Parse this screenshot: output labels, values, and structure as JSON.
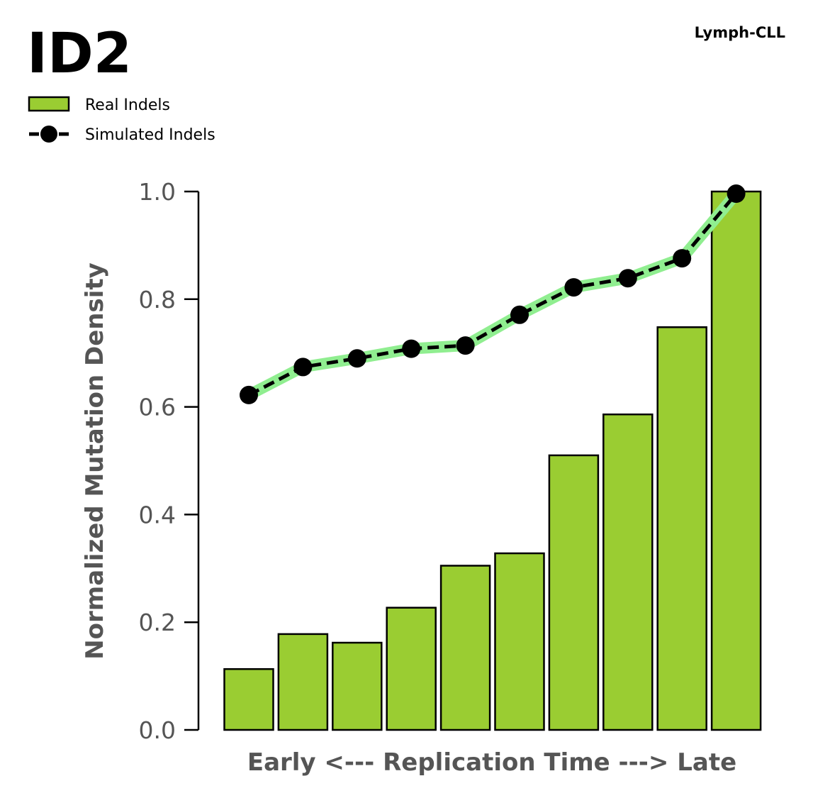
{
  "chart_data": {
    "type": "bar",
    "title": "ID2",
    "subtitle": "Lymph-CLL",
    "xlabel": "Early <--- Replication Time ---> Late",
    "ylabel": "Normalized Mutation Density",
    "ylim": [
      0,
      1.0
    ],
    "yticks": [
      "0.0",
      "0.2",
      "0.4",
      "0.6",
      "0.8",
      "1.0"
    ],
    "grid": false,
    "legend_position": "top-left",
    "series": [
      {
        "name": "Real Indels",
        "kind": "bar",
        "color": "#9ACD32",
        "values": [
          0.113,
          0.178,
          0.162,
          0.227,
          0.305,
          0.328,
          0.51,
          0.586,
          0.748,
          1.0
        ]
      },
      {
        "name": "Simulated Indels",
        "kind": "line",
        "color": "#000000",
        "band_color": "#90EE90",
        "values": [
          0.622,
          0.674,
          0.69,
          0.708,
          0.714,
          0.771,
          0.822,
          0.839,
          0.876,
          0.996
        ]
      }
    ]
  }
}
